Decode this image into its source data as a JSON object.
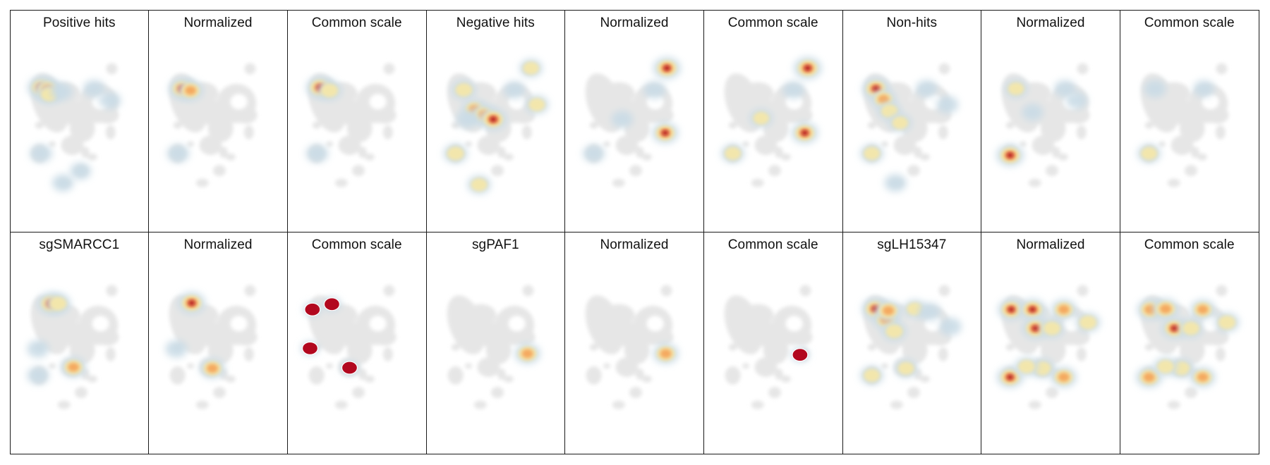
{
  "colors": {
    "background": "#e6e6e6",
    "low": "#c9dbe6",
    "mid": "#f5e7a9",
    "high": "#f5a65b",
    "max": "#b2081f"
  },
  "chart_data": [
    {
      "type": "heatmap",
      "title": "Positive hits",
      "hotspots": [
        {
          "x": -6.4,
          "y": 7.2,
          "v": 1.0
        },
        {
          "x": -5.4,
          "y": 6.9,
          "v": 0.8
        },
        {
          "x": -5.1,
          "y": 6.0,
          "v": 0.5
        },
        {
          "x": -3.0,
          "y": 6.5,
          "v": 0.3
        },
        {
          "x": 2.5,
          "y": 7.0,
          "v": 0.3
        },
        {
          "x": 5.2,
          "y": 5.0,
          "v": 0.25
        },
        {
          "x": -6.5,
          "y": -4.0,
          "v": 0.35
        },
        {
          "x": -2.8,
          "y": -9.0,
          "v": 0.25
        },
        {
          "x": 0.2,
          "y": -7.0,
          "v": 0.2
        }
      ]
    },
    {
      "type": "heatmap",
      "title": "Normalized",
      "hotspots": [
        {
          "x": -6.0,
          "y": 7.0,
          "v": 0.9
        },
        {
          "x": -4.6,
          "y": 6.7,
          "v": 0.7
        },
        {
          "x": -6.7,
          "y": -4.0,
          "v": 0.35
        }
      ]
    },
    {
      "type": "heatmap",
      "title": "Common scale",
      "hotspots": [
        {
          "x": -6.2,
          "y": 7.2,
          "v": 1.0
        },
        {
          "x": -4.6,
          "y": 6.7,
          "v": 0.6
        },
        {
          "x": -6.7,
          "y": -4.0,
          "v": 0.35
        }
      ]
    },
    {
      "type": "heatmap",
      "title": "Negative hits",
      "hotspots": [
        {
          "x": -5.4,
          "y": 6.8,
          "v": 0.55
        },
        {
          "x": -3.6,
          "y": 3.5,
          "v": 0.65
        },
        {
          "x": -2.0,
          "y": 2.6,
          "v": 0.65
        },
        {
          "x": -0.4,
          "y": 1.8,
          "v": 0.95
        },
        {
          "x": 3.2,
          "y": 6.8,
          "v": 0.3
        },
        {
          "x": 7.0,
          "y": 4.3,
          "v": 0.45
        },
        {
          "x": 6.0,
          "y": 10.5,
          "v": 0.4
        },
        {
          "x": -6.8,
          "y": -4.0,
          "v": 0.55
        },
        {
          "x": -2.8,
          "y": -9.3,
          "v": 0.45
        },
        {
          "x": -4.8,
          "y": 1.8,
          "v": 0.35
        }
      ]
    },
    {
      "type": "heatmap",
      "title": "Normalized",
      "hotspots": [
        {
          "x": 5.6,
          "y": 10.5,
          "v": 0.95
        },
        {
          "x": 5.3,
          "y": -0.5,
          "v": 0.85
        },
        {
          "x": 3.5,
          "y": 6.8,
          "v": 0.3
        },
        {
          "x": -2.0,
          "y": 1.8,
          "v": 0.25
        },
        {
          "x": -6.8,
          "y": -4.0,
          "v": 0.3
        }
      ]
    },
    {
      "type": "heatmap",
      "title": "Common scale",
      "hotspots": [
        {
          "x": 5.9,
          "y": 10.5,
          "v": 1.0
        },
        {
          "x": 5.4,
          "y": -0.5,
          "v": 0.9
        },
        {
          "x": -2.0,
          "y": 2.0,
          "v": 0.4
        },
        {
          "x": 3.5,
          "y": 6.8,
          "v": 0.3
        },
        {
          "x": -6.8,
          "y": -4.0,
          "v": 0.45
        }
      ]
    },
    {
      "type": "heatmap",
      "title": "Non-hits",
      "hotspots": [
        {
          "x": -6.1,
          "y": 7.0,
          "v": 0.95
        },
        {
          "x": -4.8,
          "y": 5.2,
          "v": 0.65
        },
        {
          "x": -3.8,
          "y": 3.2,
          "v": 0.5
        },
        {
          "x": -2.0,
          "y": 1.2,
          "v": 0.4
        },
        {
          "x": 2.5,
          "y": 7.0,
          "v": 0.3
        },
        {
          "x": 6.0,
          "y": 4.3,
          "v": 0.3
        },
        {
          "x": -6.8,
          "y": -4.0,
          "v": 0.45
        },
        {
          "x": -2.8,
          "y": -9.0,
          "v": 0.3
        }
      ]
    },
    {
      "type": "heatmap",
      "title": "Normalized",
      "hotspots": [
        {
          "x": -6.8,
          "y": -4.3,
          "v": 0.95
        },
        {
          "x": -5.8,
          "y": 7.0,
          "v": 0.4
        },
        {
          "x": 2.5,
          "y": 7.0,
          "v": 0.25
        },
        {
          "x": -3.0,
          "y": 3.0,
          "v": 0.2
        },
        {
          "x": 4.5,
          "y": 5.0,
          "v": 0.2
        }
      ]
    },
    {
      "type": "heatmap",
      "title": "Common scale",
      "hotspots": [
        {
          "x": -6.8,
          "y": -4.0,
          "v": 0.45
        },
        {
          "x": -5.8,
          "y": 7.0,
          "v": 0.3
        },
        {
          "x": 2.5,
          "y": 7.0,
          "v": 0.2
        }
      ]
    },
    {
      "type": "heatmap",
      "title": "sgSMARCC1",
      "hotspots": [
        {
          "x": -4.8,
          "y": 8.2,
          "v": 1.0
        },
        {
          "x": -3.6,
          "y": 8.2,
          "v": 0.6
        },
        {
          "x": -1.0,
          "y": -2.6,
          "v": 0.7
        },
        {
          "x": -7.0,
          "y": 0.5,
          "v": 0.3
        },
        {
          "x": -7.0,
          "y": -4.0,
          "v": 0.3
        }
      ]
    },
    {
      "type": "heatmap",
      "title": "Normalized",
      "hotspots": [
        {
          "x": -4.4,
          "y": 8.3,
          "v": 0.95
        },
        {
          "x": -0.9,
          "y": -2.8,
          "v": 0.7
        },
        {
          "x": -7.0,
          "y": 0.5,
          "v": 0.3
        }
      ]
    },
    {
      "type": "heatmap",
      "title": "Common scale",
      "hotspots": [
        {
          "x": -7.5,
          "y": 7.2,
          "v": 1.0,
          "saturated": true
        },
        {
          "x": -4.2,
          "y": 8.1,
          "v": 1.0,
          "saturated": true
        },
        {
          "x": -7.9,
          "y": 0.6,
          "v": 1.0,
          "saturated": true
        },
        {
          "x": -1.2,
          "y": -2.7,
          "v": 1.0,
          "saturated": true
        }
      ]
    },
    {
      "type": "heatmap",
      "title": "sgPAF1",
      "hotspots": [
        {
          "x": 5.4,
          "y": -0.3,
          "v": 0.75
        }
      ]
    },
    {
      "type": "heatmap",
      "title": "Normalized",
      "hotspots": [
        {
          "x": 5.4,
          "y": -0.3,
          "v": 0.75
        }
      ]
    },
    {
      "type": "heatmap",
      "title": "Common scale",
      "hotspots": [
        {
          "x": 4.6,
          "y": -0.5,
          "v": 1.0,
          "saturated": true
        }
      ]
    },
    {
      "type": "heatmap",
      "title": "sgLH15347",
      "hotspots": [
        {
          "x": -6.2,
          "y": 7.3,
          "v": 0.9
        },
        {
          "x": -4.4,
          "y": 5.5,
          "v": 0.75
        },
        {
          "x": -4.0,
          "y": 7.0,
          "v": 0.75
        },
        {
          "x": -3.0,
          "y": 3.5,
          "v": 0.6
        },
        {
          "x": 0.5,
          "y": 7.3,
          "v": 0.4
        },
        {
          "x": 3.0,
          "y": 6.8,
          "v": 0.35
        },
        {
          "x": 6.5,
          "y": 4.3,
          "v": 0.35
        },
        {
          "x": -6.8,
          "y": -4.0,
          "v": 0.45
        },
        {
          "x": -1.0,
          "y": -2.8,
          "v": 0.4
        }
      ]
    },
    {
      "type": "heatmap",
      "title": "Normalized",
      "hotspots": [
        {
          "x": -6.6,
          "y": 7.2,
          "v": 0.85
        },
        {
          "x": -3.0,
          "y": 7.2,
          "v": 0.85
        },
        {
          "x": -2.5,
          "y": 4.0,
          "v": 0.9
        },
        {
          "x": 0.3,
          "y": 4.0,
          "v": 0.6
        },
        {
          "x": 2.3,
          "y": 7.2,
          "v": 0.7
        },
        {
          "x": 6.4,
          "y": 5.0,
          "v": 0.6
        },
        {
          "x": -1.3,
          "y": -2.8,
          "v": 0.6
        },
        {
          "x": 2.3,
          "y": -4.3,
          "v": 0.75
        },
        {
          "x": -6.8,
          "y": -4.3,
          "v": 0.85
        },
        {
          "x": -4.0,
          "y": -2.5,
          "v": 0.5
        }
      ]
    },
    {
      "type": "heatmap",
      "title": "Common scale",
      "hotspots": [
        {
          "x": -6.6,
          "y": 7.2,
          "v": 0.8
        },
        {
          "x": -4.0,
          "y": 7.3,
          "v": 0.8
        },
        {
          "x": -2.5,
          "y": 4.0,
          "v": 0.85
        },
        {
          "x": 0.3,
          "y": 4.0,
          "v": 0.55
        },
        {
          "x": 2.3,
          "y": 7.2,
          "v": 0.65
        },
        {
          "x": 6.4,
          "y": 5.0,
          "v": 0.6
        },
        {
          "x": -1.3,
          "y": -2.8,
          "v": 0.55
        },
        {
          "x": 2.3,
          "y": -4.3,
          "v": 0.7
        },
        {
          "x": -6.8,
          "y": -4.3,
          "v": 0.8
        },
        {
          "x": -4.0,
          "y": -2.5,
          "v": 0.5
        }
      ]
    }
  ]
}
